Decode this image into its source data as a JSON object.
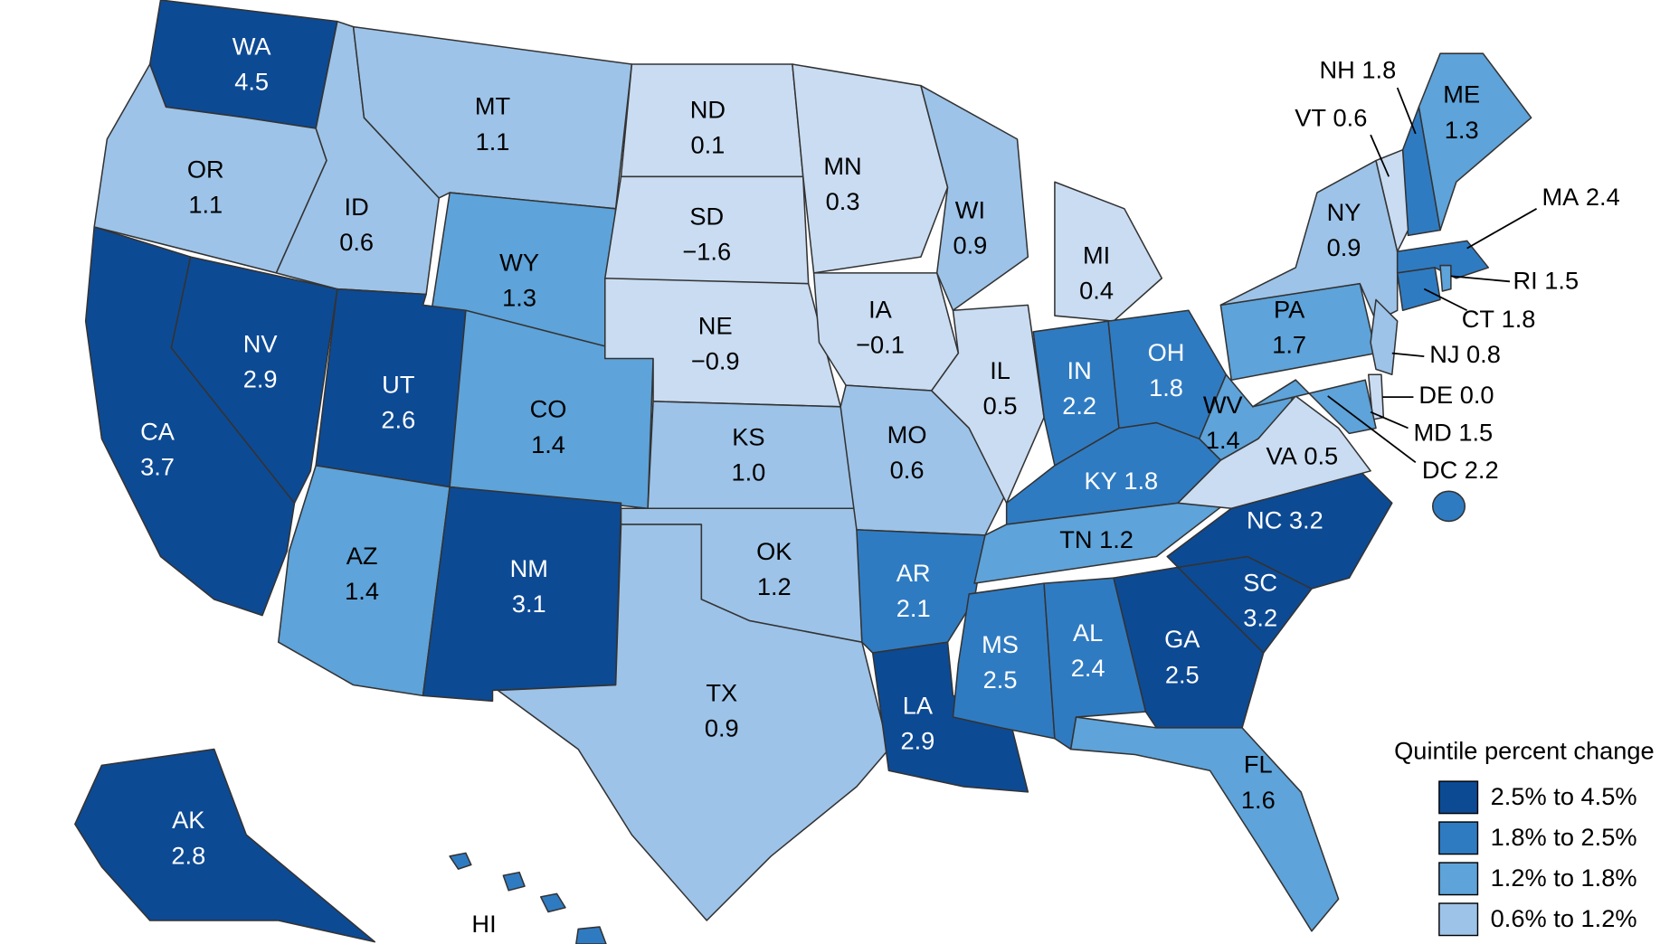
{
  "map": {
    "legend": {
      "title": "Quintile percent change",
      "items": [
        {
          "label": "2.5% to 4.5%",
          "color": "#0d4a94"
        },
        {
          "label": "1.8% to 2.5%",
          "color": "#2f7bc2"
        },
        {
          "label": "1.2% to 1.8%",
          "color": "#5ea3d9"
        },
        {
          "label": "0.6% to 1.2%",
          "color": "#9dc3e8"
        }
      ]
    },
    "states": [
      {
        "abbr": "WA",
        "value": 4.5,
        "color": "#0d4a94"
      },
      {
        "abbr": "OR",
        "value": 1.1,
        "color": "#9dc3e8"
      },
      {
        "abbr": "CA",
        "value": 3.7,
        "color": "#0d4a94"
      },
      {
        "abbr": "NV",
        "value": 2.9,
        "color": "#0d4a94"
      },
      {
        "abbr": "ID",
        "value": 0.6,
        "color": "#9dc3e8"
      },
      {
        "abbr": "MT",
        "value": 1.1,
        "color": "#9dc3e8"
      },
      {
        "abbr": "WY",
        "value": 1.3,
        "color": "#5ea3d9"
      },
      {
        "abbr": "UT",
        "value": 2.6,
        "color": "#0d4a94"
      },
      {
        "abbr": "CO",
        "value": 1.4,
        "color": "#5ea3d9"
      },
      {
        "abbr": "AZ",
        "value": 1.4,
        "color": "#5ea3d9"
      },
      {
        "abbr": "NM",
        "value": 3.1,
        "color": "#0d4a94"
      },
      {
        "abbr": "ND",
        "value": 0.1,
        "color": "#c9dcf2"
      },
      {
        "abbr": "SD",
        "value": -1.6,
        "value_label": "−1.6",
        "color": "#c9dcf2"
      },
      {
        "abbr": "NE",
        "value": -0.9,
        "value_label": "−0.9",
        "color": "#c9dcf2"
      },
      {
        "abbr": "KS",
        "value": 1.0,
        "value_label": "1.0",
        "color": "#9dc3e8"
      },
      {
        "abbr": "OK",
        "value": 1.2,
        "color": "#9dc3e8"
      },
      {
        "abbr": "TX",
        "value": 0.9,
        "color": "#9dc3e8"
      },
      {
        "abbr": "MN",
        "value": 0.3,
        "color": "#c9dcf2"
      },
      {
        "abbr": "IA",
        "value": -0.1,
        "value_label": "−0.1",
        "color": "#c9dcf2"
      },
      {
        "abbr": "MO",
        "value": 0.6,
        "color": "#9dc3e8"
      },
      {
        "abbr": "AR",
        "value": 2.1,
        "color": "#2f7bc2"
      },
      {
        "abbr": "LA",
        "value": 2.9,
        "color": "#0d4a94"
      },
      {
        "abbr": "WI",
        "value": 0.9,
        "color": "#9dc3e8"
      },
      {
        "abbr": "IL",
        "value": 0.5,
        "color": "#c9dcf2"
      },
      {
        "abbr": "MI",
        "value": 0.4,
        "color": "#c9dcf2"
      },
      {
        "abbr": "IN",
        "value": 2.2,
        "color": "#2f7bc2"
      },
      {
        "abbr": "OH",
        "value": 1.8,
        "color": "#2f7bc2"
      },
      {
        "abbr": "WV",
        "value": 1.4,
        "color": "#5ea3d9"
      },
      {
        "abbr": "PA",
        "value": 1.7,
        "color": "#5ea3d9"
      },
      {
        "abbr": "NY",
        "value": 0.9,
        "color": "#9dc3e8"
      },
      {
        "abbr": "ME",
        "value": 1.3,
        "color": "#5ea3d9"
      },
      {
        "abbr": "MS",
        "value": 2.5,
        "color": "#2f7bc2"
      },
      {
        "abbr": "AL",
        "value": 2.4,
        "color": "#2f7bc2"
      },
      {
        "abbr": "GA",
        "value": 2.5,
        "color": "#0d4a94"
      },
      {
        "abbr": "SC",
        "value": 3.2,
        "color": "#0d4a94"
      },
      {
        "abbr": "FL",
        "value": 1.6,
        "color": "#5ea3d9"
      },
      {
        "abbr": "AK",
        "value": 2.8,
        "color": "#0d4a94"
      },
      {
        "abbr": "KY",
        "value": 1.8,
        "color": "#2f7bc2"
      },
      {
        "abbr": "TN",
        "value": 1.2,
        "color": "#5ea3d9"
      },
      {
        "abbr": "NC",
        "value": 3.2,
        "color": "#0d4a94"
      },
      {
        "abbr": "VA",
        "value": 0.5,
        "color": "#c9dcf2"
      },
      {
        "abbr": "NH",
        "value": 1.8,
        "color": "#2f7bc2"
      },
      {
        "abbr": "VT",
        "value": 0.6,
        "color": "#c9dcf2"
      },
      {
        "abbr": "MA",
        "value": 2.4,
        "color": "#2f7bc2"
      },
      {
        "abbr": "RI",
        "value": 1.5,
        "color": "#5ea3d9"
      },
      {
        "abbr": "CT",
        "value": 1.8,
        "color": "#2f7bc2"
      },
      {
        "abbr": "NJ",
        "value": 0.8,
        "color": "#9dc3e8"
      },
      {
        "abbr": "DE",
        "value": 0.0,
        "value_label": "0.0",
        "color": "#c9dcf2"
      },
      {
        "abbr": "MD",
        "value": 1.5,
        "color": "#5ea3d9"
      },
      {
        "abbr": "DC",
        "value": 2.2,
        "color": "#2f7bc2"
      },
      {
        "abbr": "HI",
        "color": "#2f7bc2"
      }
    ]
  }
}
